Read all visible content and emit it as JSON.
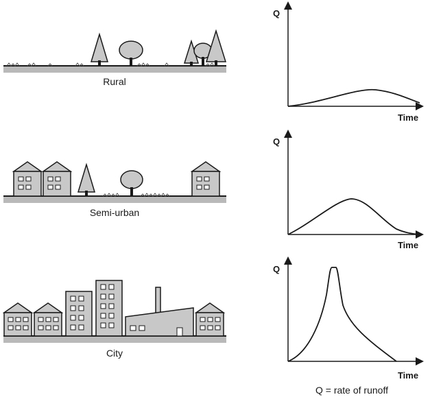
{
  "scenes": [
    {
      "label": "Rural"
    },
    {
      "label": "Semi-urban"
    },
    {
      "label": "City"
    }
  ],
  "graphs": [
    {
      "y_label": "Q",
      "x_label": "Time"
    },
    {
      "y_label": "Q",
      "x_label": "Time"
    },
    {
      "y_label": "Q",
      "x_label": "Time"
    }
  ],
  "legend": "Q = rate of runoff",
  "colors": {
    "ink": "#1a1a1a",
    "fill": "#c8c8c8",
    "ground": "#b9b9b9",
    "window": "#ffffff"
  }
}
